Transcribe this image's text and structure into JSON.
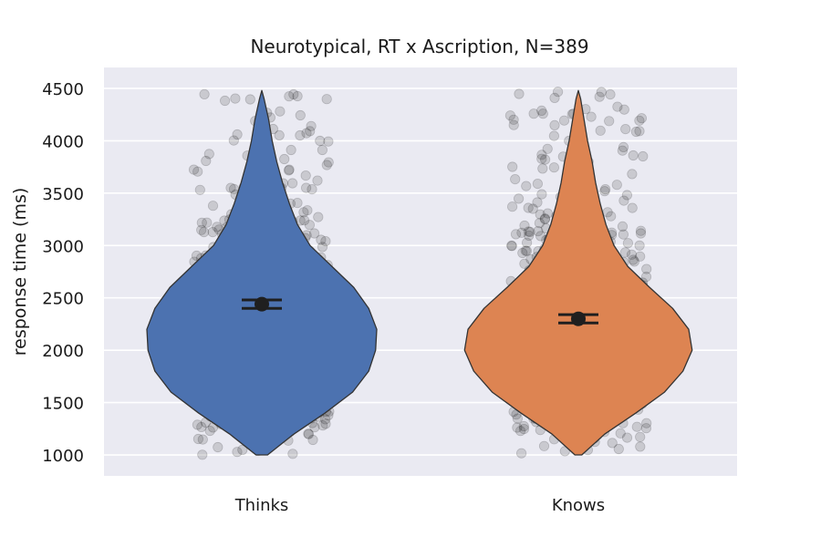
{
  "chart_data": {
    "type": "violin",
    "title": "Neurotypical, RT x Ascription,  N=389",
    "xlabel": "",
    "ylabel": "response time (ms)",
    "ylim": [
      800,
      4700
    ],
    "yticks": [
      1000,
      1500,
      2000,
      2500,
      3000,
      3500,
      4000,
      4500
    ],
    "grid": true,
    "background": "#eaeaf2",
    "categories": [
      "Thinks",
      "Knows"
    ],
    "series": [
      {
        "category": "Thinks",
        "color": "#4c72b0",
        "mean": 2440,
        "ci": [
          2400,
          2480
        ],
        "range": [
          1000,
          4480
        ],
        "density_profile": [
          [
            1000,
            0.05
          ],
          [
            1200,
            0.28
          ],
          [
            1400,
            0.55
          ],
          [
            1600,
            0.79
          ],
          [
            1800,
            0.93
          ],
          [
            2000,
            0.99
          ],
          [
            2200,
            1.0
          ],
          [
            2400,
            0.93
          ],
          [
            2600,
            0.8
          ],
          [
            2800,
            0.61
          ],
          [
            3000,
            0.42
          ],
          [
            3200,
            0.31
          ],
          [
            3400,
            0.24
          ],
          [
            3600,
            0.18
          ],
          [
            3800,
            0.13
          ],
          [
            4000,
            0.09
          ],
          [
            4200,
            0.06
          ],
          [
            4400,
            0.02
          ],
          [
            4480,
            0.0
          ]
        ]
      },
      {
        "category": "Knows",
        "color": "#dd8452",
        "mean": 2300,
        "ci": [
          2260,
          2340
        ],
        "range": [
          1000,
          4480
        ],
        "density_profile": [
          [
            1000,
            0.03
          ],
          [
            1200,
            0.23
          ],
          [
            1400,
            0.5
          ],
          [
            1600,
            0.75
          ],
          [
            1800,
            0.91
          ],
          [
            2000,
            0.99
          ],
          [
            2200,
            0.96
          ],
          [
            2400,
            0.82
          ],
          [
            2600,
            0.62
          ],
          [
            2800,
            0.43
          ],
          [
            3000,
            0.31
          ],
          [
            3200,
            0.24
          ],
          [
            3400,
            0.19
          ],
          [
            3600,
            0.15
          ],
          [
            3800,
            0.12
          ],
          [
            4000,
            0.08
          ],
          [
            4200,
            0.05
          ],
          [
            4400,
            0.02
          ],
          [
            4480,
            0.0
          ]
        ]
      }
    ],
    "jitter_points": {
      "color": "#000000",
      "alpha": 0.14,
      "count_per_group": 700
    }
  }
}
